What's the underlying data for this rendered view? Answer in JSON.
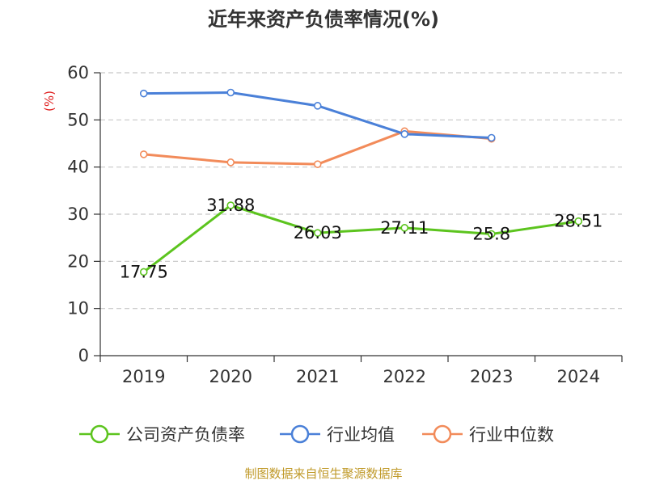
{
  "chart_data": {
    "type": "line",
    "title": "近年来资产负债率情况(%)",
    "ylabel": "(%)",
    "categories": [
      "2019",
      "2020",
      "2021",
      "2022",
      "2023",
      "2024"
    ],
    "yticks": [
      0,
      10,
      20,
      30,
      40,
      50,
      60
    ],
    "ylim": [
      0,
      60
    ],
    "grid": true,
    "legend_position": "bottom",
    "series": [
      {
        "name": "公司资产负债率",
        "color": "#5cc41e",
        "values": [
          17.75,
          31.88,
          26.03,
          27.11,
          25.8,
          28.51
        ],
        "labels": [
          "17.75",
          "31.88",
          "26.03",
          "27.11",
          "25.8",
          "28.51"
        ]
      },
      {
        "name": "行业均值",
        "color": "#4a80d8",
        "values": [
          55.6,
          55.8,
          53.0,
          47.0,
          46.2,
          null
        ]
      },
      {
        "name": "行业中位数",
        "color": "#f28b5a",
        "values": [
          42.7,
          41.0,
          40.6,
          47.6,
          46.0,
          null
        ]
      }
    ]
  },
  "source": "制图数据来自恒生聚源数据库"
}
